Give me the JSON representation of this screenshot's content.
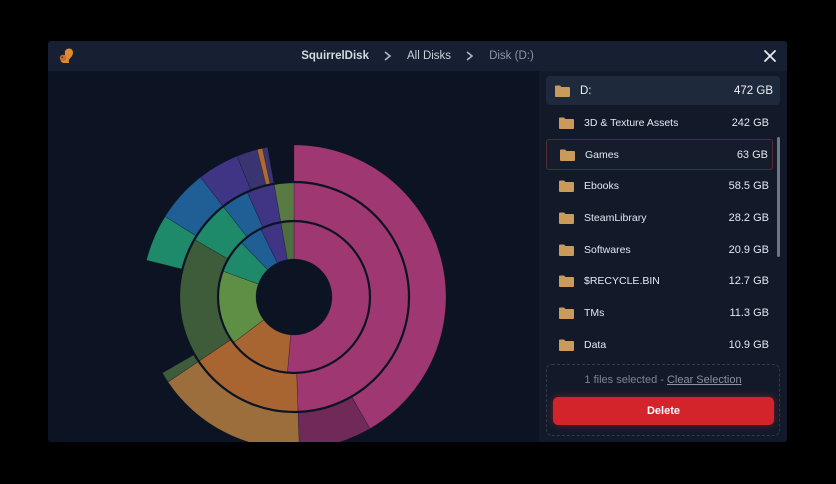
{
  "app": {
    "name": "SquirrelDisk",
    "logo_icon": "squirrel-icon",
    "accent": "#d3242c"
  },
  "breadcrumb": {
    "app": "SquirrelDisk",
    "all_disks": "All Disks",
    "current": "Disk (D:)"
  },
  "root": {
    "label": "D:",
    "size": "472 GB"
  },
  "items": [
    {
      "label": "3D & Texture Assets",
      "size": "242 GB",
      "selected": false
    },
    {
      "label": "Games",
      "size": "63 GB",
      "selected": true
    },
    {
      "label": "Ebooks",
      "size": "58.5 GB",
      "selected": false
    },
    {
      "label": "SteamLibrary",
      "size": "28.2 GB",
      "selected": false
    },
    {
      "label": "Softwares",
      "size": "20.9 GB",
      "selected": false
    },
    {
      "label": "$RECYCLE.BIN",
      "size": "12.7 GB",
      "selected": false
    },
    {
      "label": "TMs",
      "size": "11.3 GB",
      "selected": false
    },
    {
      "label": "Data",
      "size": "10.9 GB",
      "selected": false
    }
  ],
  "footer": {
    "selected_text": "1 files selected -",
    "clear_label": "Clear Selection",
    "delete_label": "Delete"
  },
  "sunburst": {
    "colors": {
      "pink": "#9e3772",
      "pink_dark": "#702a5a",
      "orange": "#a86532",
      "orange_light": "#9c6e3c",
      "green_dark": "#3e5c3a",
      "green_light": "#5e8f45",
      "teal": "#1f8a6a",
      "blue": "#1f5f95",
      "purple": "#3f3584"
    }
  }
}
